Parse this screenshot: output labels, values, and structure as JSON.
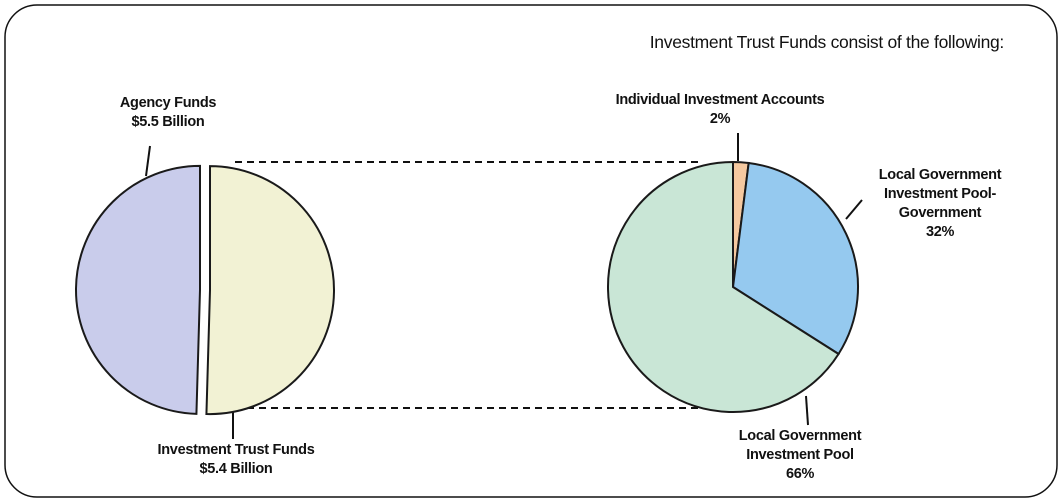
{
  "chart_data": [
    {
      "type": "pie",
      "categories": [
        "Agency Funds",
        "Investment Trust Funds"
      ],
      "values": [
        5.5,
        5.4
      ],
      "value_labels": [
        "$5.5 Billion",
        "$5.4 Billion"
      ],
      "colors": [
        "#f2f2d4",
        "#c9cceb"
      ]
    },
    {
      "type": "pie",
      "title": "Investment Trust Funds consist of the following:",
      "categories": [
        "Individual Investment Accounts",
        "Local Government Investment Pool-Government",
        "Local Government Investment Pool"
      ],
      "values": [
        2,
        32,
        66
      ],
      "value_labels": [
        "2%",
        "32%",
        "66%"
      ],
      "colors": [
        "#f5c9a0",
        "#95c9ef",
        "#c9e6d6"
      ]
    }
  ]
}
